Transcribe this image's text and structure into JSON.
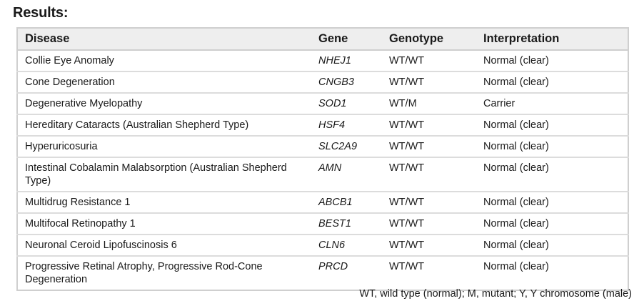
{
  "heading": "Results:",
  "table": {
    "columns": [
      "Disease",
      "Gene",
      "Genotype",
      "Interpretation"
    ],
    "rows": [
      {
        "disease": "Collie Eye Anomaly",
        "gene": "NHEJ1",
        "genotype": "WT/WT",
        "interpretation": "Normal (clear)"
      },
      {
        "disease": "Cone Degeneration",
        "gene": "CNGB3",
        "genotype": "WT/WT",
        "interpretation": "Normal (clear)"
      },
      {
        "disease": "Degenerative Myelopathy",
        "gene": "SOD1",
        "genotype": "WT/M",
        "interpretation": "Carrier"
      },
      {
        "disease": "Hereditary Cataracts (Australian Shepherd Type)",
        "gene": "HSF4",
        "genotype": "WT/WT",
        "interpretation": "Normal (clear)"
      },
      {
        "disease": "Hyperuricosuria",
        "gene": "SLC2A9",
        "genotype": "WT/WT",
        "interpretation": "Normal (clear)"
      },
      {
        "disease": "Intestinal Cobalamin Malabsorption (Australian Shepherd Type)",
        "gene": "AMN",
        "genotype": "WT/WT",
        "interpretation": "Normal (clear)"
      },
      {
        "disease": "Multidrug Resistance 1",
        "gene": "ABCB1",
        "genotype": "WT/WT",
        "interpretation": "Normal (clear)"
      },
      {
        "disease": "Multifocal Retinopathy 1",
        "gene": "BEST1",
        "genotype": "WT/WT",
        "interpretation": "Normal (clear)"
      },
      {
        "disease": "Neuronal Ceroid Lipofuscinosis 6",
        "gene": "CLN6",
        "genotype": "WT/WT",
        "interpretation": "Normal (clear)"
      },
      {
        "disease": "Progressive Retinal Atrophy, Progressive Rod-Cone Degeneration",
        "gene": "PRCD",
        "genotype": "WT/WT",
        "interpretation": "Normal (clear)"
      }
    ]
  },
  "footnote": "WT, wild type (normal); M, mutant; Y, Y chromosome (male)"
}
